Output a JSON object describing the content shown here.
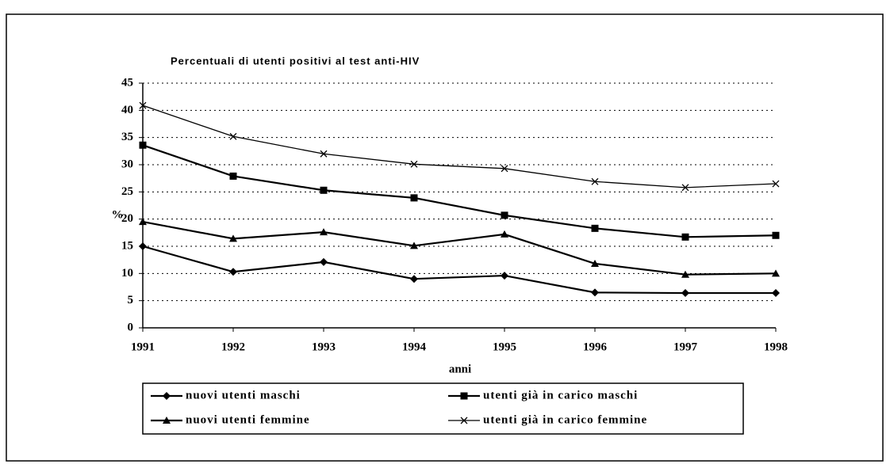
{
  "chart_data": {
    "type": "line",
    "title": "Percentuali di utenti positivi al test anti-HIV",
    "x_label": "anni",
    "y_label": "%",
    "categories": [
      "1991",
      "1992",
      "1993",
      "1994",
      "1995",
      "1996",
      "1997",
      "1998"
    ],
    "series": [
      {
        "name": "nuovi utenti maschi",
        "color": "#000000",
        "marker": "diamond",
        "values": [
          15.0,
          10.3,
          12.1,
          9.0,
          9.6,
          6.5,
          6.4,
          6.4
        ]
      },
      {
        "name": "utenti già in carico maschi",
        "color": "#000000",
        "marker": "square",
        "values": [
          33.6,
          27.9,
          25.3,
          23.9,
          20.7,
          18.3,
          16.7,
          17.0
        ]
      },
      {
        "name": "nuovi utenti femmine",
        "color": "#000000",
        "marker": "triangle",
        "values": [
          19.5,
          16.4,
          17.6,
          15.1,
          17.2,
          11.8,
          9.8,
          10.0
        ]
      },
      {
        "name": "utenti già in carico femmine",
        "color": "#000000",
        "marker": "x",
        "values": [
          40.9,
          35.2,
          32.0,
          30.1,
          29.3,
          26.9,
          25.8,
          26.5
        ]
      }
    ],
    "ylim": [
      0,
      45
    ],
    "yticks": [
      0,
      5,
      10,
      15,
      20,
      25,
      30,
      35,
      40,
      45
    ],
    "grid": true
  }
}
